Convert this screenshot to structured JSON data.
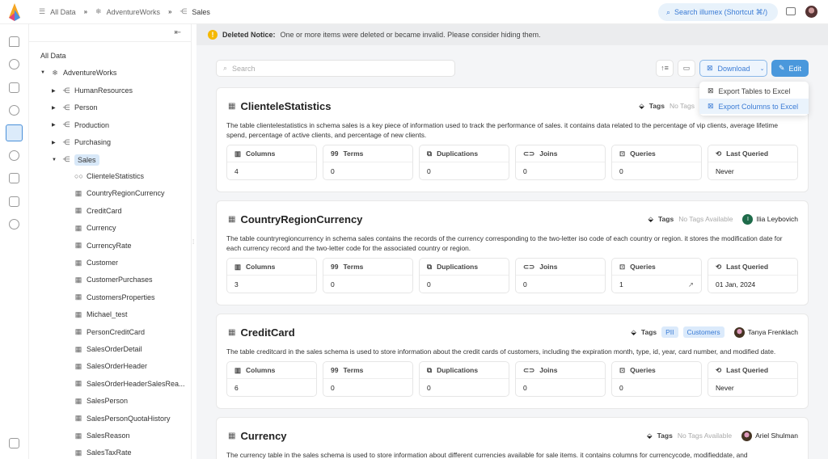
{
  "breadcrumb": [
    {
      "label": "All Data",
      "icon": "database-icon"
    },
    {
      "label": "AdventureWorks",
      "icon": "snowflake-icon"
    },
    {
      "label": "Sales",
      "icon": "schema-icon"
    }
  ],
  "global_search": "Search illumex (Shortcut ⌘/)",
  "notice": {
    "title": "Deleted Notice:",
    "text": "One or more items were deleted or became invalid. Please consider hiding them."
  },
  "search": {
    "placeholder": "Search"
  },
  "toolbar": {
    "download": "Download",
    "edit": "Edit",
    "menu": [
      "Export Tables to Excel",
      "Export Columns to Excel"
    ],
    "highlighted_menu_index": 1
  },
  "tree": {
    "root": "All Data",
    "db": "AdventureWorks",
    "schemas": [
      "HumanResources",
      "Person",
      "Production",
      "Purchasing",
      "Sales"
    ],
    "selected": "Sales",
    "tables": [
      "ClienteleStatistics",
      "CountryRegionCurrency",
      "CreditCard",
      "Currency",
      "CurrencyRate",
      "Customer",
      "CustomerPurchases",
      "CustomersProperties",
      "Michael_test",
      "PersonCreditCard",
      "SalesOrderDetail",
      "SalesOrderHeader",
      "SalesOrderHeaderSalesRea...",
      "SalesPerson",
      "SalesPersonQuotaHistory",
      "SalesReason",
      "SalesTaxRate"
    ]
  },
  "stat_labels": [
    "Columns",
    "Terms",
    "Duplications",
    "Joins",
    "Queries",
    "Last Queried"
  ],
  "tags_label": "Tags",
  "cards": [
    {
      "title": "ClienteleStatistics",
      "desc": "The table clientelestatistics in schema sales is a key piece of information used to track the performance of sales. it contains data related to the percentage of vip clients, average lifetime spend, percentage of active clients, and percentage of new clients.",
      "tags": [],
      "no_tags": "No Tags",
      "owner": "",
      "stats": [
        "4",
        "0",
        "0",
        "0",
        "0",
        "Never"
      ]
    },
    {
      "title": "CountryRegionCurrency",
      "desc": "The table countryregioncurrency in schema sales contains the records of the currency corresponding to the two-letter iso code of each country or region. it stores the modification date for each currency record and the two-letter code for the associated country or region.",
      "tags": [],
      "no_tags": "No Tags Available",
      "owner": "Ilia Leybovich",
      "owner_initial": "I",
      "stats": [
        "3",
        "0",
        "0",
        "0",
        "1",
        "01 Jan, 2024"
      ]
    },
    {
      "title": "CreditCard",
      "desc": "The table creditcard in the sales schema is used to store information about the credit cards of customers, including the expiration month, type, id, year, card number, and modified date.",
      "tags": [
        "PII",
        "Customers"
      ],
      "no_tags": "",
      "owner": "Tanya Frenklach",
      "stats": [
        "6",
        "0",
        "0",
        "0",
        "0",
        "Never"
      ]
    },
    {
      "title": "Currency",
      "desc": "The currency table in the sales schema is used to store information about different currencies available for sale items. it contains columns for currencycode, modifieddate, and",
      "tags": [],
      "no_tags": "No Tags Available",
      "owner": "Ariel Shulman",
      "stats": null
    }
  ]
}
